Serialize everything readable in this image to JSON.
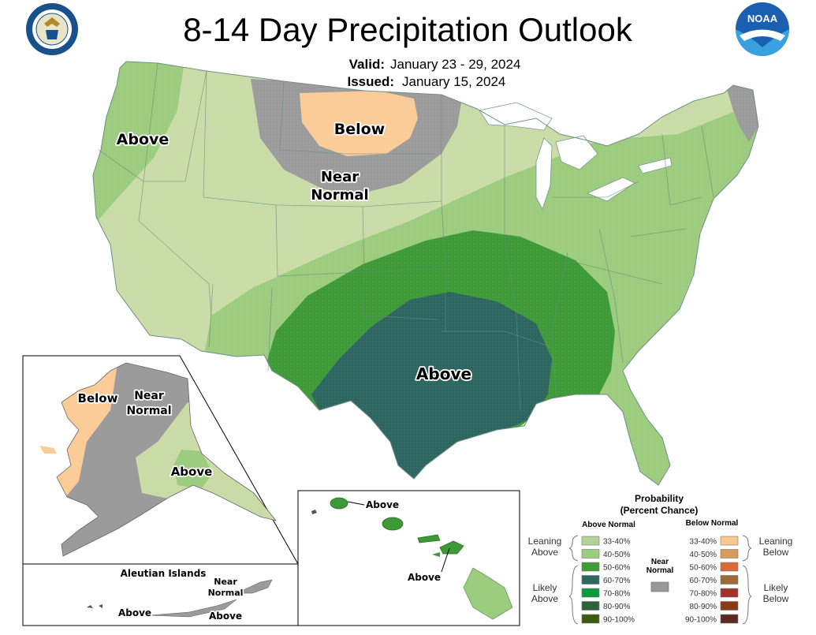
{
  "header": {
    "title": "8-14 Day Precipitation Outlook",
    "valid_label": "Valid:",
    "valid_value": "January 23 - 29, 2024",
    "issued_label": "Issued:",
    "issued_value": "January 15, 2024",
    "commerce_seal": "department-of-commerce-seal",
    "noaa_logo": "noaa-logo",
    "noaa_text": "NOAA"
  },
  "map_labels": {
    "conus_above_west": "Above",
    "conus_below_north": "Below",
    "conus_near_normal_1": "Near",
    "conus_near_normal_2": "Normal",
    "conus_above_south": "Above",
    "alaska_below": "Below",
    "alaska_near_1": "Near",
    "alaska_near_2": "Normal",
    "alaska_above": "Above",
    "aleutian_title": "Aleutian Islands",
    "aleutian_near_1": "Near",
    "aleutian_near_2": "Normal",
    "aleutian_above_1": "Above",
    "aleutian_above_2": "Above",
    "hawaii_above_1": "Above",
    "hawaii_above_2": "Above"
  },
  "legend": {
    "title_1": "Probability",
    "title_2": "(Percent Chance)",
    "above_header": "Above Normal",
    "below_header": "Below Normal",
    "near_1": "Near",
    "near_2": "Normal",
    "leaning_above_1": "Leaning",
    "leaning_above_2": "Above",
    "likely_above_1": "Likely",
    "likely_above_2": "Above",
    "leaning_below_1": "Leaning",
    "leaning_below_2": "Below",
    "likely_below_1": "Likely",
    "likely_below_2": "Below",
    "above_items": [
      {
        "label": "33-40%",
        "color": "#b5d19a"
      },
      {
        "label": "40-50%",
        "color": "#9acd80"
      },
      {
        "label": "50-60%",
        "color": "#3f9b34"
      },
      {
        "label": "60-70%",
        "color": "#2e6661"
      },
      {
        "label": "70-80%",
        "color": "#0b9a3c"
      },
      {
        "label": "80-90%",
        "color": "#2f6138"
      },
      {
        "label": "90-100%",
        "color": "#3a5a10"
      }
    ],
    "below_items": [
      {
        "label": "33-40%",
        "color": "#f9c892"
      },
      {
        "label": "40-50%",
        "color": "#d99a5a"
      },
      {
        "label": "50-60%",
        "color": "#d96a36"
      },
      {
        "label": "60-70%",
        "color": "#9c6a35"
      },
      {
        "label": "70-80%",
        "color": "#a0322a"
      },
      {
        "label": "80-90%",
        "color": "#8b3a18"
      },
      {
        "label": "90-100%",
        "color": "#5a2a20"
      }
    ],
    "near_color": "#999999"
  },
  "colors": {
    "lean_above": "#c9dca8",
    "above_40": "#9ccc7e",
    "above_50": "#3d9a36",
    "above_60": "#2d6560",
    "lean_below": "#fbcb98",
    "near_normal": "#9b9b9b",
    "water": "#ffffff"
  }
}
